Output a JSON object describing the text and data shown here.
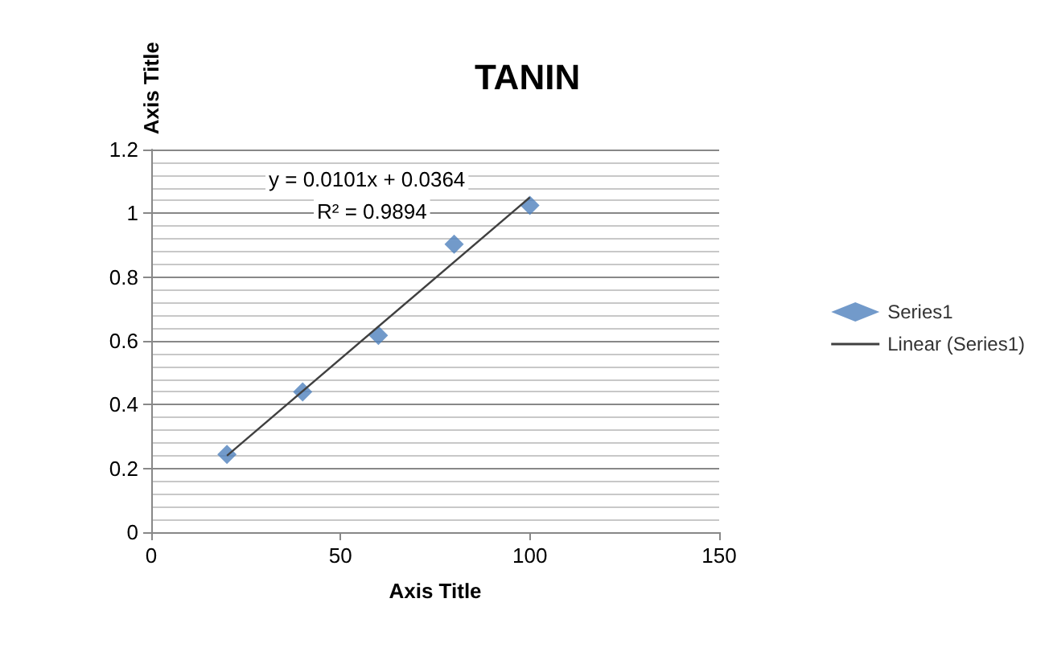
{
  "chart_data": {
    "type": "scatter",
    "title": "TANIN",
    "xlabel": "Axis Title",
    "ylabel": "Axis Title",
    "x": [
      20,
      40,
      60,
      80,
      100
    ],
    "series": [
      {
        "name": "Series1",
        "color": "#4f81bd",
        "values": [
          0.244,
          0.44,
          0.617,
          0.903,
          1.025
        ],
        "marker": "diamond"
      },
      {
        "name": "Linear (Series1)",
        "type": "line",
        "color": "#404040",
        "x": [
          20,
          100
        ],
        "values": [
          0.24,
          1.05
        ],
        "marker": "none"
      }
    ],
    "annotations": [
      "y = 0.0101x + 0.0364",
      "R² = 0.9894"
    ],
    "xlim": [
      0,
      150
    ],
    "xticks": [
      0,
      50,
      100,
      150
    ],
    "ylim": [
      0,
      1.2
    ],
    "yticks": [
      0,
      0.2,
      0.4,
      0.6,
      0.8,
      1,
      1.2
    ],
    "grid": "y",
    "legend": "right"
  }
}
